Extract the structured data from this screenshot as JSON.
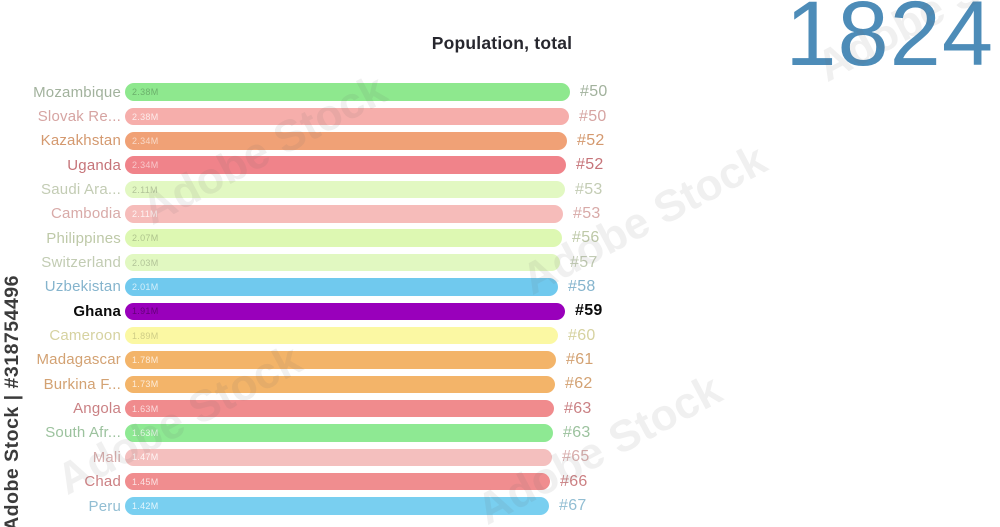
{
  "header": {
    "title": "Population, total",
    "year": "1824",
    "year_color": "#4d8cb8"
  },
  "watermark": {
    "label": "Adobe Stock | #318754496",
    "tile_text": "Adobe Stock"
  },
  "chart_data": {
    "type": "bar",
    "orientation": "horizontal",
    "title": "Population, total",
    "year": 1824,
    "value_unit": "millions of people",
    "legend": "none",
    "grid": false,
    "rows": [
      {
        "country": "Mozambique",
        "value_label": "2.38M",
        "value_millions": 2.38,
        "rank": "#50",
        "bar_color": "#8ee88e",
        "text_color": "#a2b29d",
        "value_color": "rgba(0,0,0,0.25)",
        "bar_len": 445,
        "highlight": false
      },
      {
        "country": "Slovak Re...",
        "value_label": "2.38M",
        "value_millions": 2.38,
        "rank": "#50",
        "bar_color": "#f6aeab",
        "text_color": "#d6a4a2",
        "value_color": "rgba(255,255,255,0.75)",
        "bar_len": 444,
        "highlight": false
      },
      {
        "country": "Kazakhstan",
        "value_label": "2.34M",
        "value_millions": 2.34,
        "rank": "#52",
        "bar_color": "#f0a176",
        "text_color": "#d4996f",
        "value_color": "rgba(255,255,255,0.6)",
        "bar_len": 442,
        "highlight": false
      },
      {
        "country": "Uganda",
        "value_label": "2.34M",
        "value_millions": 2.34,
        "rank": "#52",
        "bar_color": "#f0838a",
        "text_color": "#c67479",
        "value_color": "rgba(255,255,255,0.55)",
        "bar_len": 441,
        "highlight": false
      },
      {
        "country": "Saudi Ara...",
        "value_label": "2.11M",
        "value_millions": 2.11,
        "rank": "#53",
        "bar_color": "#e2f8c2",
        "text_color": "#c3ccb4",
        "value_color": "rgba(0,0,0,0.22)",
        "bar_len": 440,
        "highlight": false
      },
      {
        "country": "Cambodia",
        "value_label": "2.11M",
        "value_millions": 2.11,
        "rank": "#53",
        "bar_color": "#f6bcba",
        "text_color": "#d8aaa8",
        "value_color": "rgba(255,255,255,0.8)",
        "bar_len": 438,
        "highlight": false
      },
      {
        "country": "Philippines",
        "value_label": "2.07M",
        "value_millions": 2.07,
        "rank": "#56",
        "bar_color": "#ddf8b2",
        "text_color": "#bec9a8",
        "value_color": "rgba(0,0,0,0.22)",
        "bar_len": 437,
        "highlight": false
      },
      {
        "country": "Switzerland",
        "value_label": "2.03M",
        "value_millions": 2.03,
        "rank": "#57",
        "bar_color": "#e1f8c1",
        "text_color": "#c2ccb3",
        "value_color": "rgba(0,0,0,0.22)",
        "bar_len": 435,
        "highlight": false
      },
      {
        "country": "Uzbekistan",
        "value_label": "2.01M",
        "value_millions": 2.01,
        "rank": "#58",
        "bar_color": "#70c9ee",
        "text_color": "#85b4cd",
        "value_color": "rgba(255,255,255,0.7)",
        "bar_len": 433,
        "highlight": false
      },
      {
        "country": "Ghana",
        "value_label": "1.91M",
        "value_millions": 1.91,
        "rank": "#59",
        "bar_color": "#9900bb",
        "text_color": "#0b0b0b",
        "value_color": "rgba(0,0,0,0.35)",
        "bar_len": 440,
        "highlight": true
      },
      {
        "country": "Cameroon",
        "value_label": "1.89M",
        "value_millions": 1.89,
        "rank": "#60",
        "bar_color": "#fbf8a3",
        "text_color": "#d6d2a0",
        "value_color": "rgba(0,0,0,0.18)",
        "bar_len": 433,
        "highlight": false
      },
      {
        "country": "Madagascar",
        "value_label": "1.78M",
        "value_millions": 1.78,
        "rank": "#61",
        "bar_color": "#f3b469",
        "text_color": "#d3a273",
        "value_color": "rgba(255,255,255,0.75)",
        "bar_len": 431,
        "highlight": false
      },
      {
        "country": "Burkina F...",
        "value_label": "1.73M",
        "value_millions": 1.73,
        "rank": "#62",
        "bar_color": "#f3b469",
        "text_color": "#d3a273",
        "value_color": "rgba(255,255,255,0.75)",
        "bar_len": 430,
        "highlight": false
      },
      {
        "country": "Angola",
        "value_label": "1.63M",
        "value_millions": 1.63,
        "rank": "#63",
        "bar_color": "#f08b8d",
        "text_color": "#ca8184",
        "value_color": "rgba(255,255,255,0.7)",
        "bar_len": 429,
        "highlight": false
      },
      {
        "country": "South Afr...",
        "value_label": "1.63M",
        "value_millions": 1.63,
        "rank": "#63",
        "bar_color": "#8ee993",
        "text_color": "#9cc29e",
        "value_color": "rgba(255,255,255,0.8)",
        "bar_len": 428,
        "highlight": false
      },
      {
        "country": "Mali",
        "value_label": "1.47M",
        "value_millions": 1.47,
        "rank": "#65",
        "bar_color": "#f4bfbe",
        "text_color": "#d9aead",
        "value_color": "rgba(255,255,255,0.85)",
        "bar_len": 427,
        "highlight": false
      },
      {
        "country": "Chad",
        "value_label": "1.45M",
        "value_millions": 1.45,
        "rank": "#66",
        "bar_color": "#f08d8f",
        "text_color": "#cc8083",
        "value_color": "rgba(255,255,255,0.75)",
        "bar_len": 425,
        "highlight": false
      },
      {
        "country": "Peru",
        "value_label": "1.42M",
        "value_millions": 1.42,
        "rank": "#67",
        "bar_color": "#79cff0",
        "text_color": "#92bed3",
        "value_color": "rgba(255,255,255,0.8)",
        "bar_len": 424,
        "highlight": false
      }
    ]
  }
}
